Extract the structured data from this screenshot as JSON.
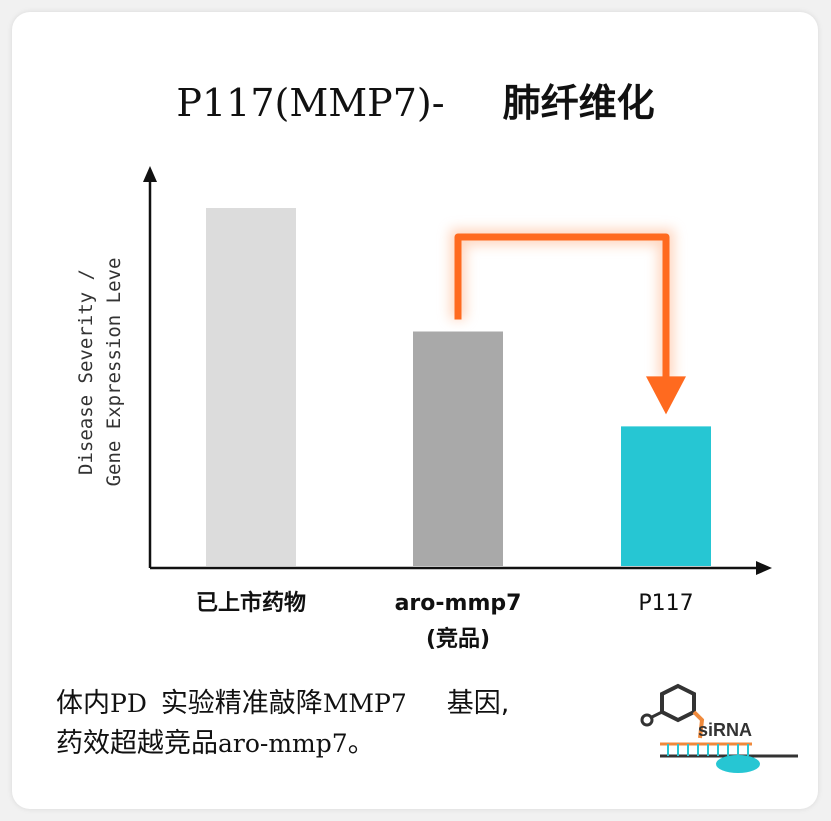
{
  "title": {
    "prefix": "P117(MMP7)-",
    "main": "肺纤维化"
  },
  "chart_data": {
    "type": "bar",
    "ylabel_line1": "Disease Severity /",
    "ylabel_line2": "Gene Expression Leve",
    "categories": [
      {
        "line1": "已上市药物",
        "line2": ""
      },
      {
        "line1": "aro-mmp7",
        "line2": "(竞品)"
      },
      {
        "line1": "P117",
        "line2": ""
      }
    ],
    "values": [
      100,
      65.5,
      39
    ],
    "ylim": [
      0,
      100
    ],
    "colors": [
      "#dcdcdc",
      "#a9a9a9",
      "#26c6d3"
    ],
    "annotation": {
      "type": "arrow",
      "from": 1,
      "to": 2,
      "color": "#ff6a1f"
    },
    "grid": false
  },
  "caption": {
    "line1_a": "体内",
    "line1_b": "PD ",
    "line1_c": "实验精准敲降",
    "line1_d": "MMP7",
    "line1_e": "基因,",
    "line2_a": "药效超越竞品",
    "line2_b": "aro-mmp7",
    "line2_c": "。"
  },
  "logo": {
    "text": "siRNA",
    "accent": "#f08a3c",
    "strand": "#26c6d3"
  }
}
